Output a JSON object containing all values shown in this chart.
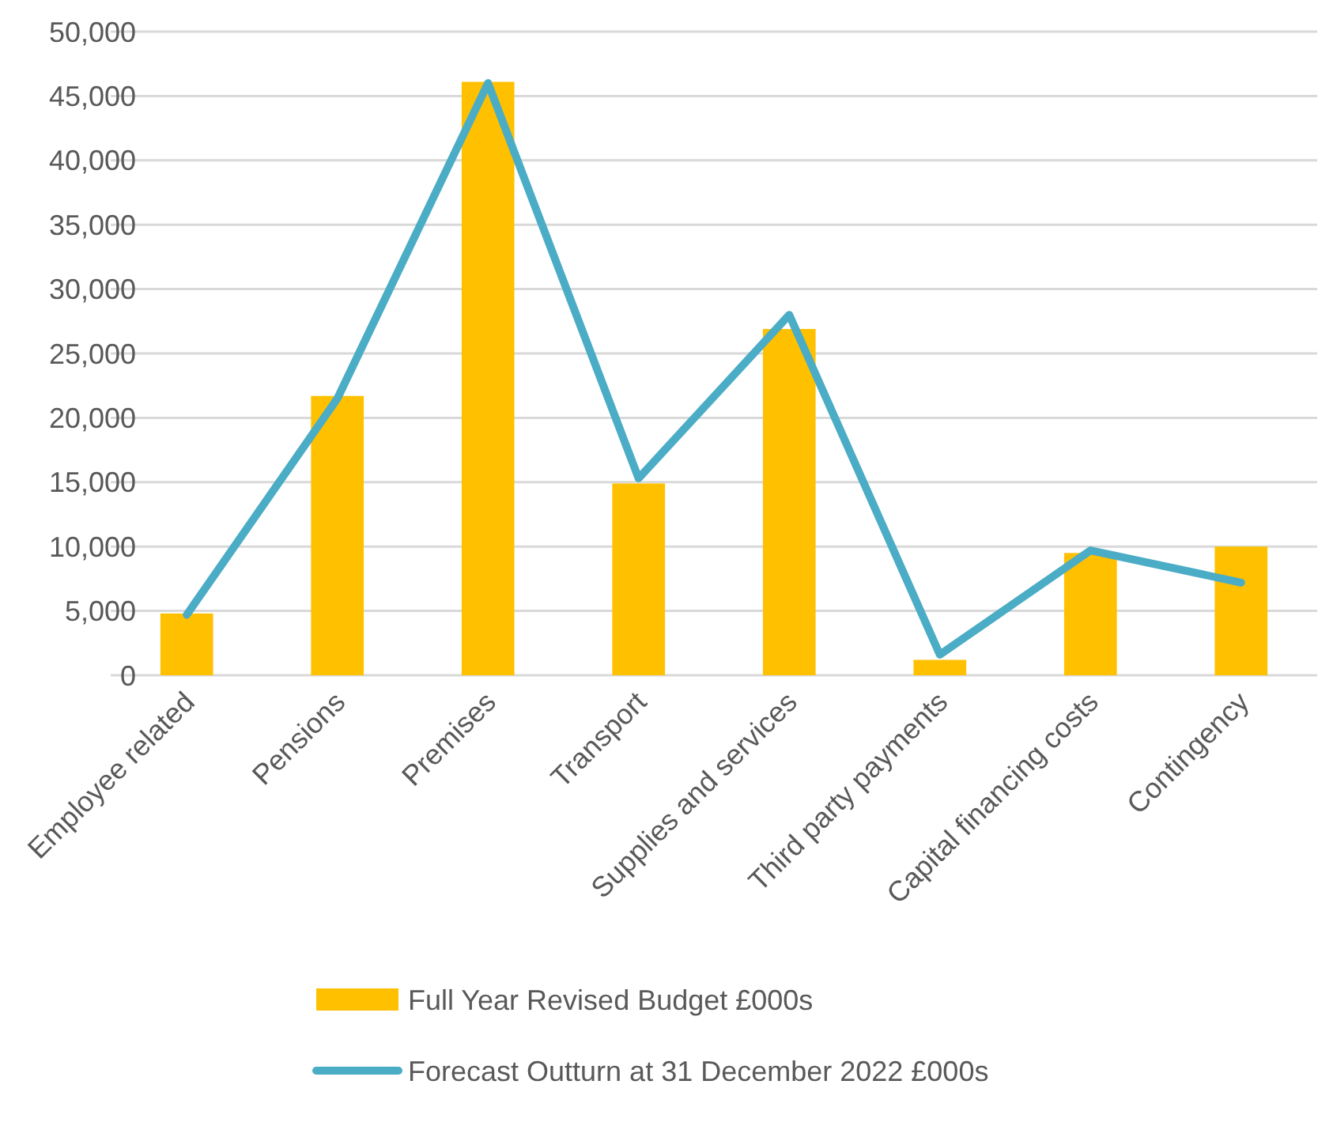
{
  "chart_data": {
    "type": "bar",
    "categories": [
      "Employee related",
      "Pensions",
      "Premises",
      "Transport",
      "Supplies and services",
      "Third party payments",
      "Capital financing costs",
      "Contingency"
    ],
    "series": [
      {
        "name": "Full Year Revised Budget £000s",
        "color": "#ffc000",
        "values": [
          4800,
          21700,
          46100,
          14900,
          26900,
          1200,
          9500,
          10000
        ]
      },
      {
        "name": "Forecast Outturn at 31 December 2022 £000s",
        "type": "line",
        "color": "#4bacc6",
        "values": [
          4700,
          21500,
          46000,
          15300,
          28000,
          1600,
          9700,
          7200
        ]
      }
    ],
    "ylim": [
      0,
      50000
    ],
    "yticks": [
      {
        "value": 0,
        "label": "0"
      },
      {
        "value": 5000,
        "label": "5,000"
      },
      {
        "value": 10000,
        "label": "10,000"
      },
      {
        "value": 15000,
        "label": "15,000"
      },
      {
        "value": 20000,
        "label": "20,000"
      },
      {
        "value": 25000,
        "label": "25,000"
      },
      {
        "value": 30000,
        "label": "30,000"
      },
      {
        "value": 35000,
        "label": "35,000"
      },
      {
        "value": 40000,
        "label": "40,000"
      },
      {
        "value": 45000,
        "label": "45,000"
      },
      {
        "value": 50000,
        "label": "50,000"
      }
    ],
    "grid": "y",
    "legend": "bottom",
    "marker": "none"
  }
}
